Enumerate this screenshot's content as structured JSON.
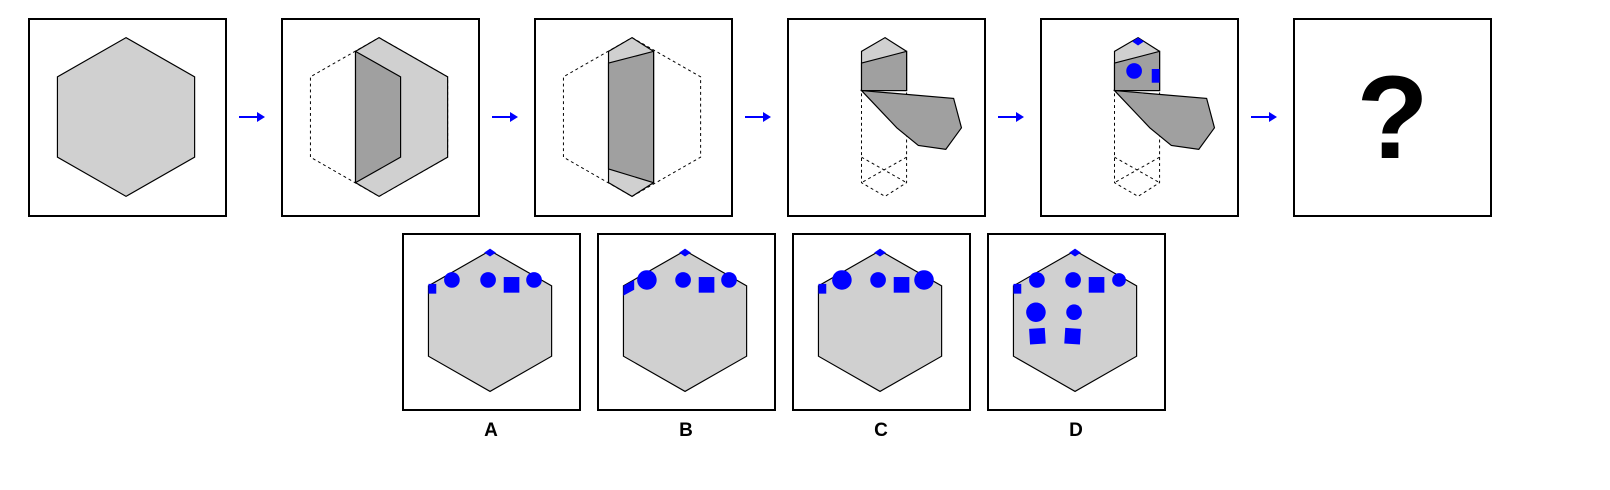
{
  "question_mark": "?",
  "options": [
    {
      "label": "A"
    },
    {
      "label": "B"
    },
    {
      "label": "C"
    },
    {
      "label": "D"
    }
  ],
  "colors": {
    "paper": "#d0d0d0",
    "folded_face": "#a0a0a0",
    "marks": "#0000ff",
    "outline": "#000000",
    "arrow": "#0000ff"
  },
  "icons": [
    "arrow-right-icon",
    "circle-mark",
    "square-mark"
  ]
}
